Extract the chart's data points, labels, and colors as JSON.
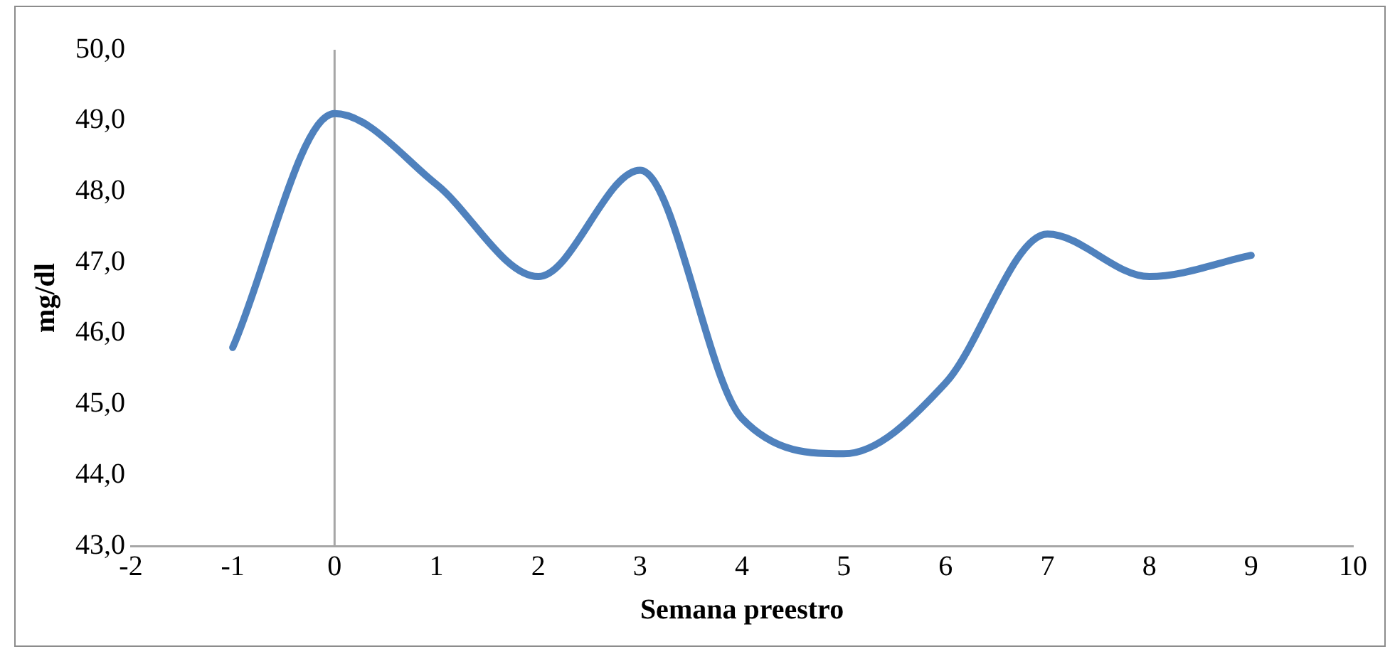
{
  "chart_data": {
    "type": "line",
    "xlabel": "Semana preestro",
    "ylabel": "mg/dl",
    "x": [
      -1,
      0,
      1,
      2,
      3,
      4,
      5,
      6,
      7,
      8,
      9
    ],
    "series": [
      {
        "color": "#4f81bd",
        "values": [
          45.8,
          49.1,
          48.1,
          46.8,
          48.3,
          44.8,
          44.3,
          45.3,
          47.4,
          46.8,
          47.1
        ]
      }
    ],
    "xlim": [
      -2,
      10
    ],
    "xticks": [
      -2,
      -1,
      0,
      1,
      2,
      3,
      4,
      5,
      6,
      7,
      8,
      9,
      10
    ],
    "ylim": [
      43,
      50
    ],
    "yticks": [
      {
        "value": 43,
        "label": "43,0"
      },
      {
        "value": 44,
        "label": "44,0"
      },
      {
        "value": 45,
        "label": "45,0"
      },
      {
        "value": 46,
        "label": "46,0"
      },
      {
        "value": 47,
        "label": "47,0"
      },
      {
        "value": 48,
        "label": "48,0"
      },
      {
        "value": 49,
        "label": "49,0"
      },
      {
        "value": 50,
        "label": "50,0"
      }
    ],
    "ref_lines": [
      {
        "axis": "x",
        "value": 0,
        "color": "#a6a6a6"
      }
    ],
    "grid": false,
    "legend": false,
    "marker": "none",
    "line_style": "solid"
  }
}
